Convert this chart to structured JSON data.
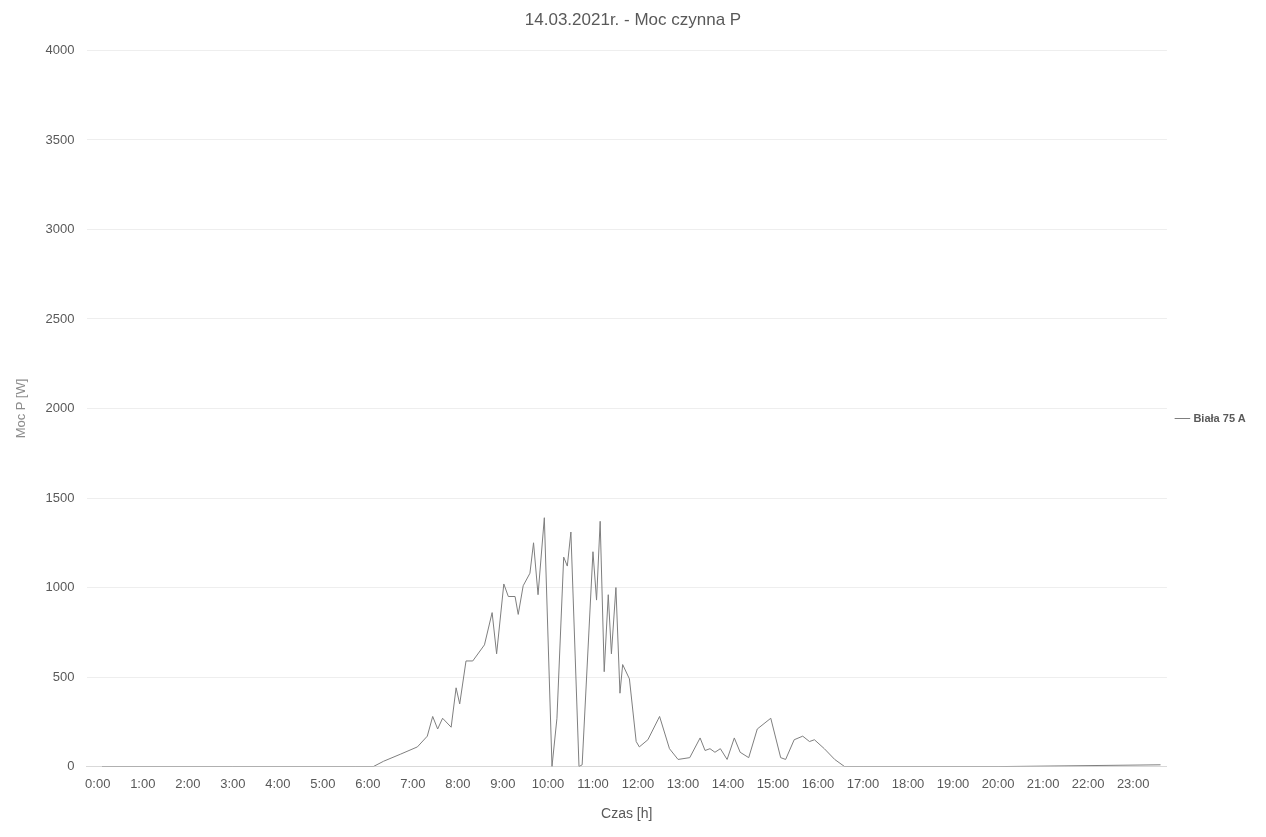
{
  "chart_data": {
    "type": "line",
    "title": "14.03.2021r. - Moc czynna P",
    "xlabel": "Czas [h]",
    "ylabel": "Moc P [W]",
    "x": [
      0.1,
      3,
      5.72,
      6.12,
      6.35,
      6.73,
      7.1,
      7.32,
      7.44,
      7.55,
      7.66,
      7.85,
      7.96,
      8.04,
      8.18,
      8.33,
      8.59,
      8.76,
      8.86,
      9.02,
      9.12,
      9.27,
      9.34,
      9.45,
      9.6,
      9.68,
      9.78,
      9.92,
      10.09,
      10.2,
      10.35,
      10.43,
      10.51,
      10.69,
      10.76,
      11,
      11.08,
      11.16,
      11.25,
      11.34,
      11.41,
      11.51,
      11.6,
      11.66,
      11.81,
      11.96,
      12.03,
      12.22,
      12.48,
      12.7,
      12.89,
      13.15,
      13.38,
      13.49,
      13.6,
      13.71,
      13.83,
      13.98,
      14.14,
      14.27,
      14.46,
      14.65,
      14.95,
      15.17,
      15.28,
      15.47,
      15.66,
      15.81,
      15.92,
      16.14,
      16.37,
      16.59,
      17,
      20,
      23.6
    ],
    "series": [
      {
        "name": "Biała 75 A",
        "color": "#7f7f7f",
        "values": [
          0,
          0,
          0,
          0,
          30,
          70,
          110,
          170,
          280,
          210,
          270,
          220,
          440,
          350,
          590,
          590,
          680,
          860,
          630,
          1020,
          950,
          950,
          850,
          1010,
          1080,
          1250,
          960,
          1390,
          0,
          270,
          1170,
          1120,
          1310,
          0,
          10,
          1200,
          930,
          1370,
          530,
          960,
          630,
          1000,
          410,
          570,
          490,
          140,
          110,
          150,
          280,
          100,
          40,
          50,
          160,
          90,
          100,
          80,
          100,
          40,
          160,
          80,
          50,
          210,
          270,
          50,
          40,
          150,
          170,
          140,
          150,
          100,
          40,
          0,
          0,
          0,
          10
        ]
      }
    ],
    "xlim": [
      -0.25,
      23.75
    ],
    "xticks": [
      {
        "value": 0,
        "label": "0:00"
      },
      {
        "value": 1,
        "label": "1:00"
      },
      {
        "value": 2,
        "label": "2:00"
      },
      {
        "value": 3,
        "label": "3:00"
      },
      {
        "value": 4,
        "label": "4:00"
      },
      {
        "value": 5,
        "label": "5:00"
      },
      {
        "value": 6,
        "label": "6:00"
      },
      {
        "value": 7,
        "label": "7:00"
      },
      {
        "value": 8,
        "label": "8:00"
      },
      {
        "value": 9,
        "label": "9:00"
      },
      {
        "value": 10,
        "label": "10:00"
      },
      {
        "value": 11,
        "label": "11:00"
      },
      {
        "value": 12,
        "label": "12:00"
      },
      {
        "value": 13,
        "label": "13:00"
      },
      {
        "value": 14,
        "label": "14:00"
      },
      {
        "value": 15,
        "label": "15:00"
      },
      {
        "value": 16,
        "label": "16:00"
      },
      {
        "value": 17,
        "label": "17:00"
      },
      {
        "value": 18,
        "label": "18:00"
      },
      {
        "value": 19,
        "label": "19:00"
      },
      {
        "value": 20,
        "label": "20:00"
      },
      {
        "value": 21,
        "label": "21:00"
      },
      {
        "value": 22,
        "label": "22:00"
      },
      {
        "value": 23,
        "label": "23:00"
      }
    ],
    "ylim": [
      0,
      4000
    ],
    "yticks": [
      0,
      500,
      1000,
      1500,
      2000,
      2500,
      3000,
      3500,
      4000
    ],
    "grid": "y",
    "legend": "right",
    "marker": "none",
    "line_style": "solid"
  }
}
